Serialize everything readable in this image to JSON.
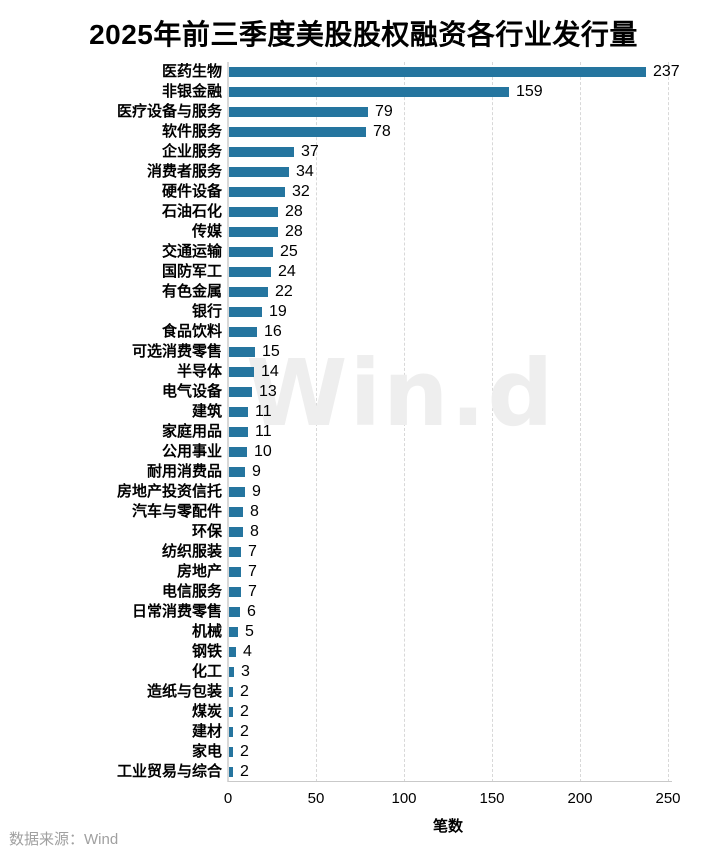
{
  "title": "2025年前三季度美股股权融资各行业发行量",
  "source": "数据来源：Wind",
  "watermark": "Win.d",
  "colors": {
    "bar": "#25759f",
    "grid": "#d8d8d8",
    "axis": "#c9c9c9",
    "text": "#000000",
    "source_text": "#a0a0a0",
    "watermark_text": "#eeeeee",
    "background": "#ffffff"
  },
  "chart_data": {
    "type": "bar",
    "orientation": "horizontal",
    "title": "2025年前三季度美股股权融资各行业发行量",
    "xlabel": "笔数",
    "ylabel": "",
    "xlim": [
      0,
      250
    ],
    "xticks": [
      0,
      50,
      100,
      150,
      200,
      250
    ],
    "grid": "vertical-dashed",
    "legend": "none",
    "categories": [
      "医药生物",
      "非银金融",
      "医疗设备与服务",
      "软件服务",
      "企业服务",
      "消费者服务",
      "硬件设备",
      "石油石化",
      "传媒",
      "交通运输",
      "国防军工",
      "有色金属",
      "银行",
      "食品饮料",
      "可选消费零售",
      "半导体",
      "电气设备",
      "建筑",
      "家庭用品",
      "公用事业",
      "耐用消费品",
      "房地产投资信托",
      "汽车与零配件",
      "环保",
      "纺织服装",
      "房地产",
      "电信服务",
      "日常消费零售",
      "机械",
      "钢铁",
      "化工",
      "造纸与包装",
      "煤炭",
      "建材",
      "家电",
      "工业贸易与综合"
    ],
    "values": [
      237,
      159,
      79,
      78,
      37,
      34,
      32,
      28,
      28,
      25,
      24,
      22,
      19,
      16,
      15,
      14,
      13,
      11,
      11,
      10,
      9,
      9,
      8,
      8,
      7,
      7,
      7,
      6,
      5,
      4,
      3,
      2,
      2,
      2,
      2,
      2
    ]
  }
}
